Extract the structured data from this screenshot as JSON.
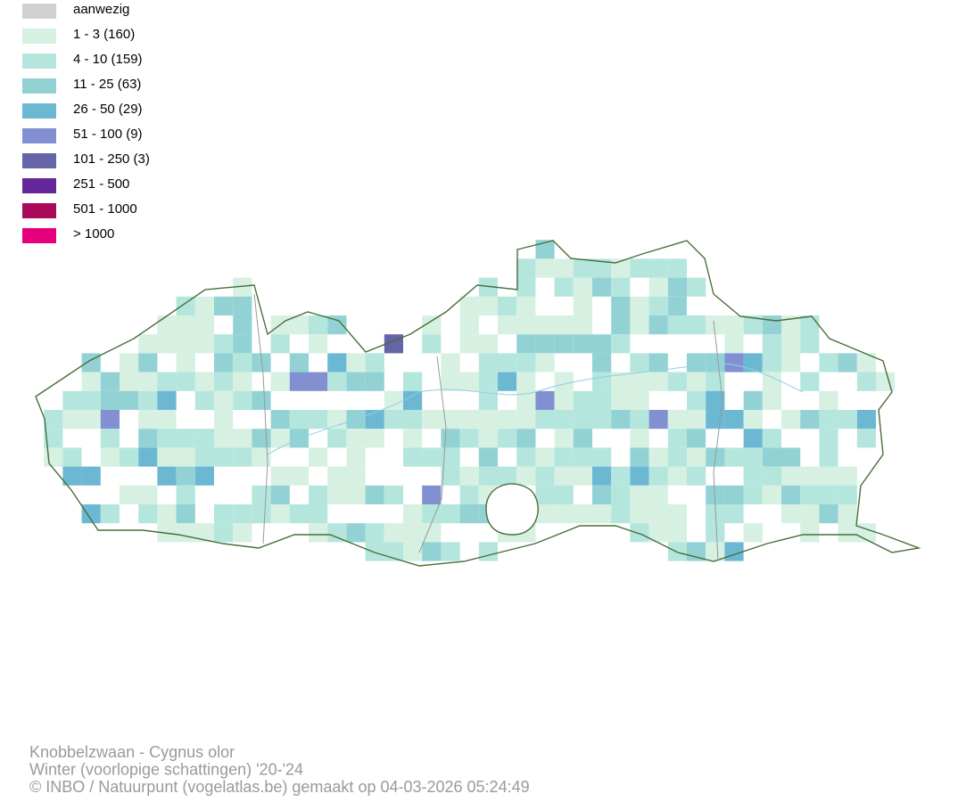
{
  "legend": {
    "items": [
      {
        "label": "aanwezig",
        "color": "#d0d0d0"
      },
      {
        "label": "1 - 3 (160)",
        "color": "#d6f0e2"
      },
      {
        "label": "4 - 10 (159)",
        "color": "#b4e6de"
      },
      {
        "label": "11 - 25 (63)",
        "color": "#93d2d4"
      },
      {
        "label": "26 - 50 (29)",
        "color": "#6cb8d2"
      },
      {
        "label": "51 - 100 (9)",
        "color": "#8290d2"
      },
      {
        "label": "101 - 250 (3)",
        "color": "#6464a6"
      },
      {
        "label": "251 - 500",
        "color": "#64289a"
      },
      {
        "label": "501 - 1000",
        "color": "#aa0a5a"
      },
      {
        "label": "> 1000",
        "color": "#e6007e"
      }
    ]
  },
  "footer": {
    "lines": [
      "Knobbelzwaan - Cygnus olor",
      "Winter (voorlopige schattingen) '20-'24",
      "© INBO / Natuurpunt (vogelatlas.be) gemaakt op 04-03-2026 05:24:49"
    ]
  }
}
